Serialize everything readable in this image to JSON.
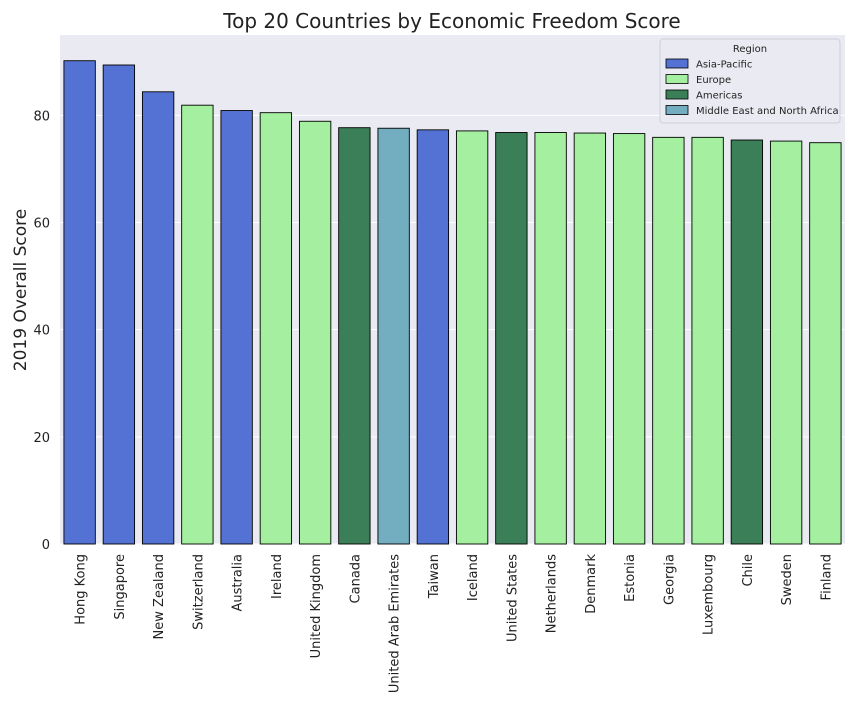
{
  "chart_data": {
    "type": "bar",
    "title": "Top 20 Countries by Economic Freedom Score",
    "xlabel": "",
    "ylabel": "2019 Overall Score",
    "ylim": [
      0,
      95
    ],
    "yticks": [
      0,
      20,
      40,
      60,
      80
    ],
    "grid": true,
    "legend_position": "top-right",
    "legend_title": "Region",
    "categories": [
      "Hong Kong",
      "Singapore",
      "New Zealand",
      "Switzerland",
      "Australia",
      "Ireland",
      "United Kingdom",
      "Canada",
      "United Arab Emirates",
      "Taiwan",
      "Iceland",
      "United States",
      "Netherlands",
      "Denmark",
      "Estonia",
      "Georgia",
      "Luxembourg",
      "Chile",
      "Sweden",
      "Finland"
    ],
    "values": [
      90.2,
      89.4,
      84.4,
      81.9,
      80.9,
      80.5,
      78.9,
      77.7,
      77.6,
      77.3,
      77.1,
      76.8,
      76.8,
      76.7,
      76.6,
      75.9,
      75.9,
      75.4,
      75.2,
      74.9
    ],
    "regions": [
      "Asia-Pacific",
      "Asia-Pacific",
      "Asia-Pacific",
      "Europe",
      "Asia-Pacific",
      "Europe",
      "Europe",
      "Americas",
      "Middle East and North Africa",
      "Asia-Pacific",
      "Europe",
      "Americas",
      "Europe",
      "Europe",
      "Europe",
      "Europe",
      "Europe",
      "Americas",
      "Europe",
      "Europe"
    ],
    "legend": [
      {
        "name": "Asia-Pacific",
        "color": "#5472d3"
      },
      {
        "name": "Europe",
        "color": "#a4f0a0"
      },
      {
        "name": "Americas",
        "color": "#3a7f58"
      },
      {
        "name": "Middle East and North Africa",
        "color": "#72adc0"
      }
    ]
  },
  "colors": {
    "plot_background": "#eaeaf2",
    "grid": "#ffffff",
    "bar_edge": "#000000",
    "text": "#222222"
  }
}
